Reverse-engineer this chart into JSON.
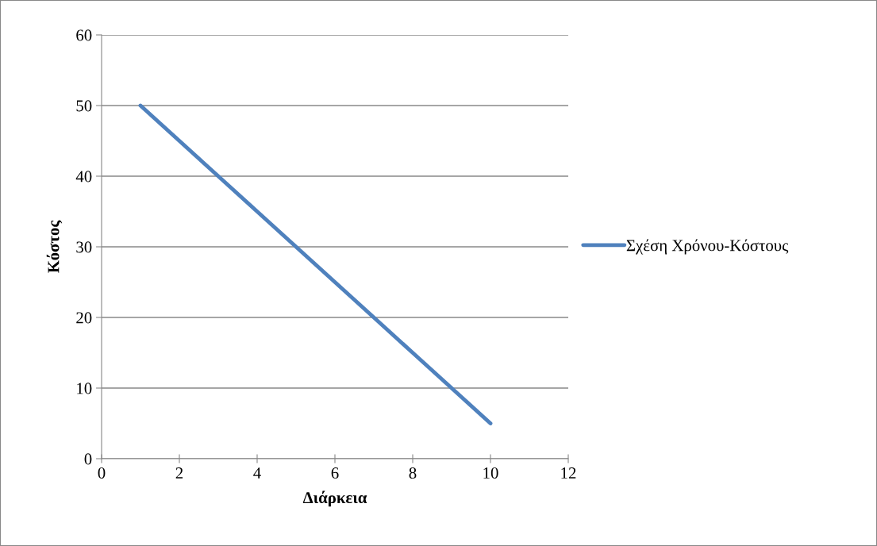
{
  "chart_data": {
    "type": "line",
    "xlabel": "Διάρκεια",
    "ylabel": "Κόστος",
    "x": [
      1,
      2,
      3,
      4,
      5,
      6,
      7,
      8,
      9,
      10
    ],
    "series": [
      {
        "name": "Σχέση Χρόνου-Κόστους",
        "color": "#4f81bd",
        "values": [
          50,
          45,
          40,
          35,
          30,
          25,
          20,
          15,
          10,
          5
        ]
      }
    ],
    "xlim": [
      0,
      12
    ],
    "xticks": [
      0,
      2,
      4,
      6,
      8,
      10,
      12
    ],
    "ylim": [
      0,
      60
    ],
    "yticks": [
      0,
      10,
      20,
      30,
      40,
      50,
      60
    ],
    "grid": "y",
    "legend": "right",
    "marker": "none",
    "line_style": "solid"
  }
}
